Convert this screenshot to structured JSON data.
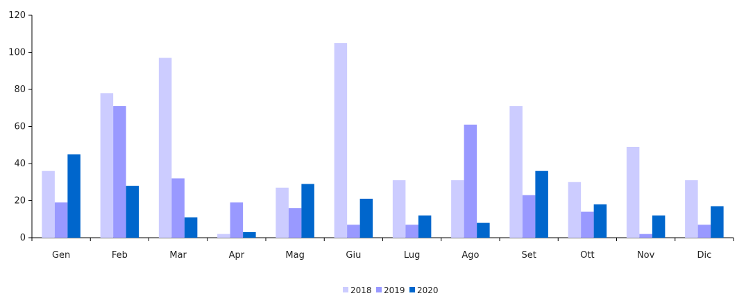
{
  "chart_data": {
    "type": "bar",
    "title": "",
    "xlabel": "",
    "ylabel": "",
    "categories": [
      "Gen",
      "Feb",
      "Mar",
      "Apr",
      "Mag",
      "Giu",
      "Lug",
      "Ago",
      "Set",
      "Ott",
      "Nov",
      "Dic"
    ],
    "ylim": [
      0,
      120
    ],
    "yticks": [
      "0",
      "20",
      "40",
      "60",
      "80",
      "100",
      "120"
    ],
    "grid": false,
    "legend_position": "bottom-center",
    "series": [
      {
        "name": "2018",
        "color": "#ccccff",
        "values": [
          36,
          78,
          97,
          2,
          27,
          105,
          31,
          31,
          71,
          30,
          49,
          31
        ]
      },
      {
        "name": "2019",
        "color": "#9999ff",
        "values": [
          19,
          71,
          32,
          19,
          16,
          7,
          7,
          61,
          23,
          14,
          2,
          7
        ]
      },
      {
        "name": "2020",
        "color": "#0066cc",
        "values": [
          45,
          28,
          11,
          3,
          29,
          21,
          12,
          8,
          36,
          18,
          12,
          17
        ]
      }
    ]
  }
}
